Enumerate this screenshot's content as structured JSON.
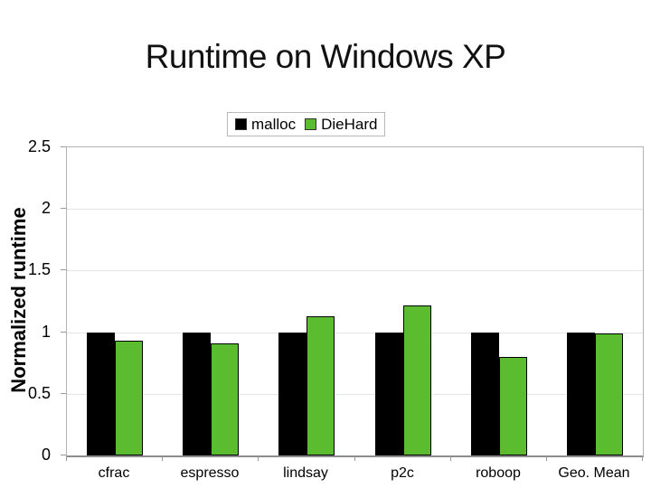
{
  "slide": {
    "title": "Runtime on Windows XP"
  },
  "chart_data": {
    "type": "bar",
    "title": "Runtime on Windows XP",
    "xlabel": "",
    "ylabel": "Normalized runtime",
    "categories": [
      "cfrac",
      "espresso",
      "lindsay",
      "p2c",
      "roboop",
      "Geo. Mean"
    ],
    "series": [
      {
        "name": "malloc",
        "color": "#000000",
        "values": [
          1.0,
          1.0,
          1.0,
          1.0,
          1.0,
          1.0
        ]
      },
      {
        "name": "DieHard",
        "color": "#5bbc30",
        "values": [
          0.93,
          0.91,
          1.13,
          1.22,
          0.8,
          0.99
        ]
      }
    ],
    "ylim": [
      0,
      2.5
    ],
    "yticks": [
      0,
      0.5,
      1,
      1.5,
      2,
      2.5
    ],
    "grid": true,
    "legend_position": "top-center",
    "legend_labels": [
      "malloc",
      "DieHard"
    ]
  },
  "colors": {
    "background": "#ffffff",
    "malloc_bar": "#000000",
    "diehard_bar": "#5bbc30",
    "gridline": "#e4e4e4",
    "plot_border": "#b3b3b3",
    "axis_line": "#8c8c8c",
    "text": "#000000"
  }
}
